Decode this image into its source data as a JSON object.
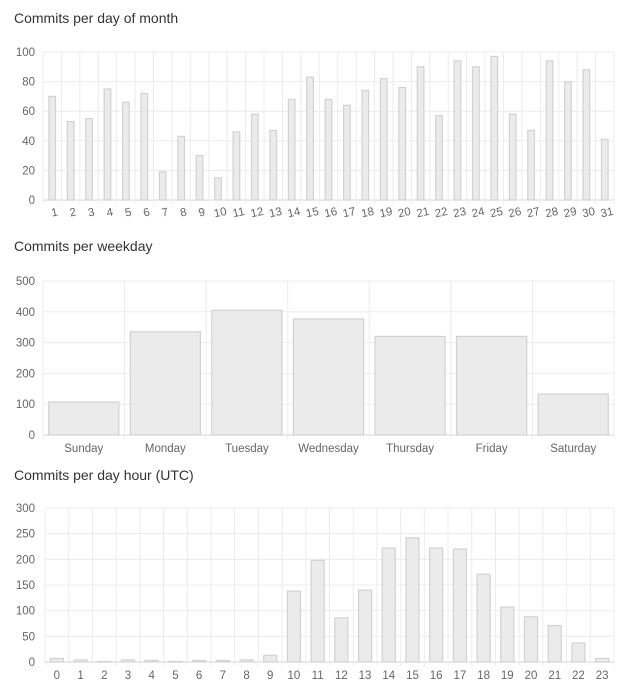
{
  "charts": [
    {
      "key": "month",
      "title": "Commits per day of month",
      "type": "bar",
      "ylim": [
        0,
        100
      ],
      "yticks": [
        0,
        20,
        40,
        60,
        80,
        100
      ],
      "categories": [
        "1",
        "2",
        "3",
        "4",
        "5",
        "6",
        "7",
        "8",
        "9",
        "10",
        "11",
        "12",
        "13",
        "14",
        "15",
        "16",
        "17",
        "18",
        "19",
        "20",
        "21",
        "22",
        "23",
        "24",
        "25",
        "26",
        "27",
        "28",
        "29",
        "30",
        "31"
      ],
      "values": [
        70,
        53,
        55,
        75,
        66,
        72,
        19,
        43,
        30,
        15,
        46,
        58,
        47,
        68,
        83,
        68,
        64,
        74,
        82,
        76,
        90,
        57,
        94,
        90,
        97,
        58,
        47,
        94,
        80,
        88,
        41
      ]
    },
    {
      "key": "weekday",
      "title": "Commits per weekday",
      "type": "bar",
      "ylim": [
        0,
        500
      ],
      "yticks": [
        0,
        100,
        200,
        300,
        400,
        500
      ],
      "categories": [
        "Sunday",
        "Monday",
        "Tuesday",
        "Wednesday",
        "Thursday",
        "Friday",
        "Saturday"
      ],
      "values": [
        107,
        335,
        405,
        377,
        320,
        320,
        133
      ]
    },
    {
      "key": "hour",
      "title": "Commits per day hour (UTC)",
      "type": "bar",
      "ylim": [
        0,
        300
      ],
      "yticks": [
        0,
        50,
        100,
        150,
        200,
        250,
        300
      ],
      "categories": [
        "0",
        "1",
        "2",
        "3",
        "4",
        "5",
        "6",
        "7",
        "8",
        "9",
        "10",
        "11",
        "12",
        "13",
        "14",
        "15",
        "16",
        "17",
        "18",
        "19",
        "20",
        "21",
        "22",
        "23"
      ],
      "values": [
        7,
        4,
        1,
        4,
        3,
        1,
        3,
        3,
        4,
        13,
        138,
        198,
        86,
        140,
        222,
        242,
        222,
        220,
        171,
        107,
        88,
        71,
        37,
        7
      ]
    }
  ]
}
